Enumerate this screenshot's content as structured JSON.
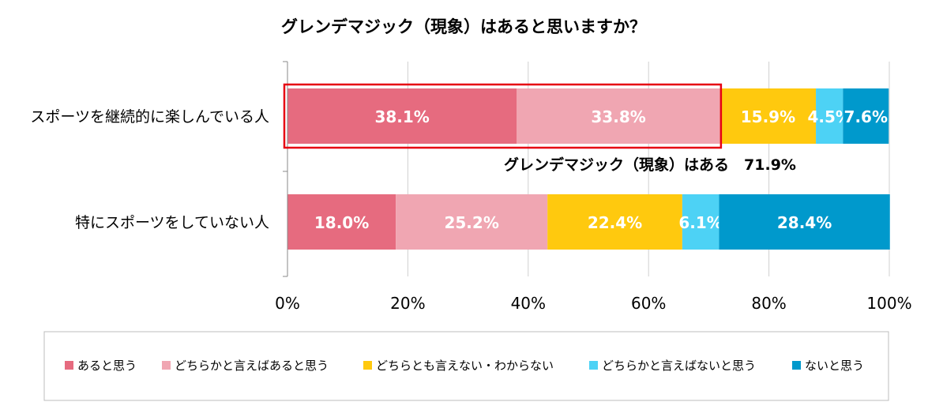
{
  "chart_data": {
    "type": "bar",
    "orientation": "horizontal",
    "stacked": true,
    "title": "グレンデマジック（現象）はあると思いますか？",
    "categories": [
      "スポーツを継続的に楽しんでいる人",
      "特にスポーツをしていない人"
    ],
    "series": [
      {
        "name": "あると思う",
        "color": "#E66B7F",
        "values": [
          38.1,
          18.0
        ],
        "labels": [
          "38.1%",
          "18.0%"
        ]
      },
      {
        "name": "どちらかと言えばあると思う",
        "color": "#F0A6B2",
        "values": [
          33.8,
          25.2
        ],
        "labels": [
          "33.8%",
          "25.2%"
        ]
      },
      {
        "name": "どちらとも言えない・わからない",
        "color": "#FFC90E",
        "values": [
          15.9,
          22.4
        ],
        "labels": [
          "15.9%",
          "22.4%"
        ]
      },
      {
        "name": "どちらかと言えばないと思う",
        "color": "#4DD2F5",
        "values": [
          4.5,
          6.1
        ],
        "labels": [
          "4.5%",
          "6.1%"
        ]
      },
      {
        "name": "ないと思う",
        "color": "#0099CC",
        "values": [
          7.6,
          28.4
        ],
        "labels": [
          "7.6%",
          "28.4%"
        ]
      }
    ],
    "xlim": [
      0,
      100
    ],
    "x_ticks": [
      "0%",
      "20%",
      "40%",
      "60%",
      "80%",
      "100%"
    ],
    "grid": true,
    "legend_position": "bottom",
    "annotation": {
      "text": "グレンデマジック（現象）はある　71.9%",
      "category_index": 0,
      "highlight_range": [
        0,
        71.9
      ],
      "highlight_color": "#E60012"
    }
  }
}
